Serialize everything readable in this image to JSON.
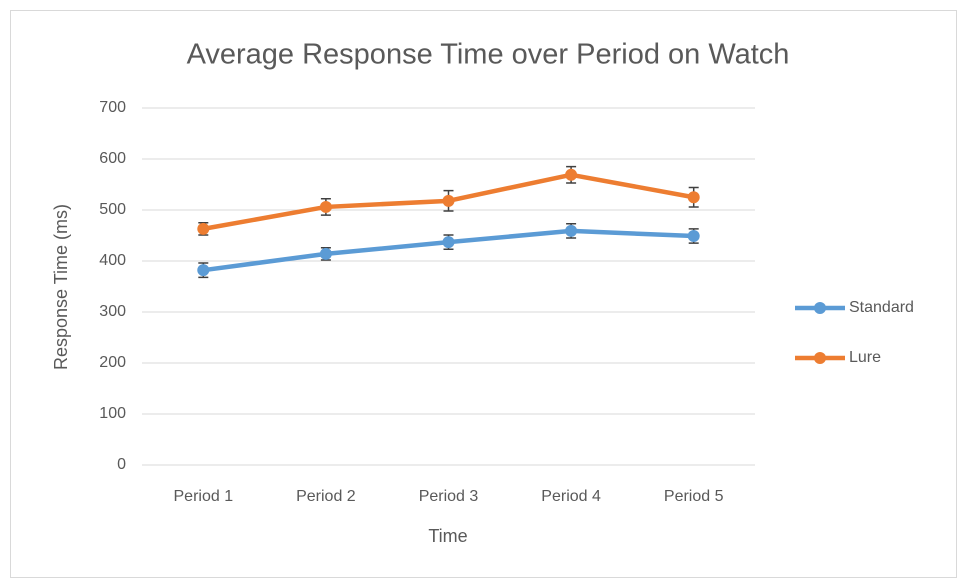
{
  "chart_data": {
    "type": "line",
    "title": "Average Response Time over Period on Watch",
    "x_label": "Time",
    "y_label": "Response Time (ms)",
    "categories": [
      "Period 1",
      "Period 2",
      "Period 3",
      "Period 4",
      "Period 5"
    ],
    "series": [
      {
        "name": "Standard",
        "color": "#5b9bd5",
        "values": [
          382,
          414,
          437,
          459,
          449
        ],
        "errors": [
          14,
          12,
          14,
          14,
          14
        ]
      },
      {
        "name": "Lure",
        "color": "#ed7d31",
        "values": [
          463,
          506,
          518,
          569,
          525
        ],
        "errors": [
          12,
          16,
          20,
          16,
          19
        ]
      }
    ],
    "ylim": [
      0,
      700
    ],
    "yticks": [
      0,
      100,
      200,
      300,
      400,
      500,
      600,
      700
    ],
    "grid": true,
    "legend": "right"
  }
}
